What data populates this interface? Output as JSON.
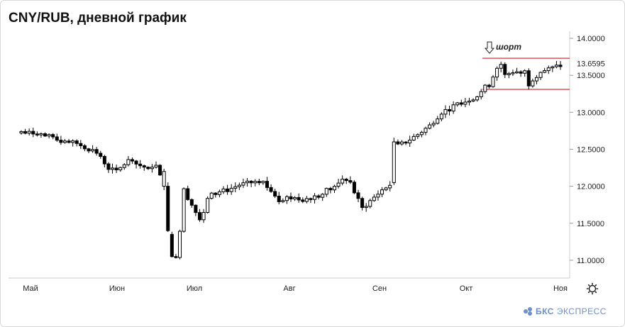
{
  "title": "CNY/RUB, дневной график",
  "logo": {
    "brand": "БКС",
    "product": "ЭКСПРЕСС"
  },
  "settings_icon": "gear-icon",
  "colors": {
    "up": "#ffffff",
    "down": "#000000",
    "level": "#d4333c",
    "logo": "#6f8fc9"
  },
  "chart_data": {
    "type": "candlestick",
    "instrument": "CNY/RUB",
    "timeframe": "дневной",
    "x_labels": [
      "Май",
      "Июн",
      "Июл",
      "Авг",
      "Сен",
      "Окт",
      "Ноя"
    ],
    "y_ticks": [
      "14.0000",
      "13.5000",
      "13.0000",
      "12.5000",
      "12.0000",
      "11.5000",
      "11.0000"
    ],
    "ylim": [
      10.85,
      14.1
    ],
    "last_price": "13.6595",
    "levels": [
      {
        "name": "resistance",
        "value": 13.73
      },
      {
        "name": "support",
        "value": 13.31
      }
    ],
    "annotation": {
      "text": "шорт",
      "value": 13.75
    },
    "grid": false,
    "anchors": [
      [
        0,
        12.72
      ],
      [
        4,
        12.72
      ],
      [
        9,
        12.62
      ],
      [
        14,
        12.58
      ],
      [
        19,
        12.45
      ],
      [
        22,
        12.25
      ],
      [
        24,
        12.2
      ],
      [
        27,
        12.35
      ],
      [
        30,
        12.28
      ],
      [
        33,
        12.22
      ],
      [
        34,
        12.3
      ],
      [
        35,
        12.18
      ],
      [
        37,
        11.95
      ],
      [
        38,
        11.5
      ],
      [
        39,
        11.05
      ],
      [
        40,
        11.4
      ],
      [
        41,
        11.95
      ],
      [
        43,
        11.75
      ],
      [
        45,
        11.55
      ],
      [
        46,
        11.62
      ],
      [
        47,
        11.85
      ],
      [
        49,
        11.92
      ],
      [
        52,
        11.95
      ],
      [
        55,
        12.02
      ],
      [
        58,
        12.05
      ],
      [
        61,
        12.02
      ],
      [
        63,
        11.95
      ],
      [
        65,
        11.82
      ],
      [
        67,
        11.85
      ],
      [
        70,
        11.82
      ],
      [
        73,
        11.85
      ],
      [
        76,
        11.92
      ],
      [
        78,
        11.98
      ],
      [
        80,
        12.02
      ],
      [
        82,
        12.12
      ],
      [
        83,
        12.05
      ],
      [
        84,
        11.92
      ],
      [
        86,
        11.7
      ],
      [
        87,
        11.75
      ],
      [
        89,
        11.85
      ],
      [
        91,
        11.95
      ],
      [
        93,
        12.02
      ],
      [
        94,
        12.3
      ],
      [
        95,
        12.55
      ],
      [
        97,
        12.6
      ],
      [
        100,
        12.7
      ],
      [
        103,
        12.82
      ],
      [
        106,
        13.0
      ],
      [
        109,
        13.08
      ],
      [
        112,
        13.15
      ],
      [
        115,
        13.22
      ],
      [
        118,
        13.4
      ],
      [
        120,
        13.6
      ],
      [
        121,
        13.65
      ],
      [
        122,
        13.5
      ],
      [
        124,
        13.55
      ],
      [
        127,
        13.55
      ],
      [
        128,
        13.38
      ],
      [
        129,
        13.45
      ],
      [
        131,
        13.55
      ],
      [
        134,
        13.6
      ],
      [
        136,
        13.64
      ]
    ],
    "big_candles": [
      {
        "index": 36,
        "open": 12.0,
        "close": 12.2
      },
      {
        "index": 37,
        "open": 12.0,
        "close": 11.4
      },
      {
        "index": 38,
        "open": 11.35,
        "close": 11.05
      },
      {
        "index": 94,
        "open": 12.05,
        "close": 12.6
      }
    ],
    "seed": 7
  }
}
